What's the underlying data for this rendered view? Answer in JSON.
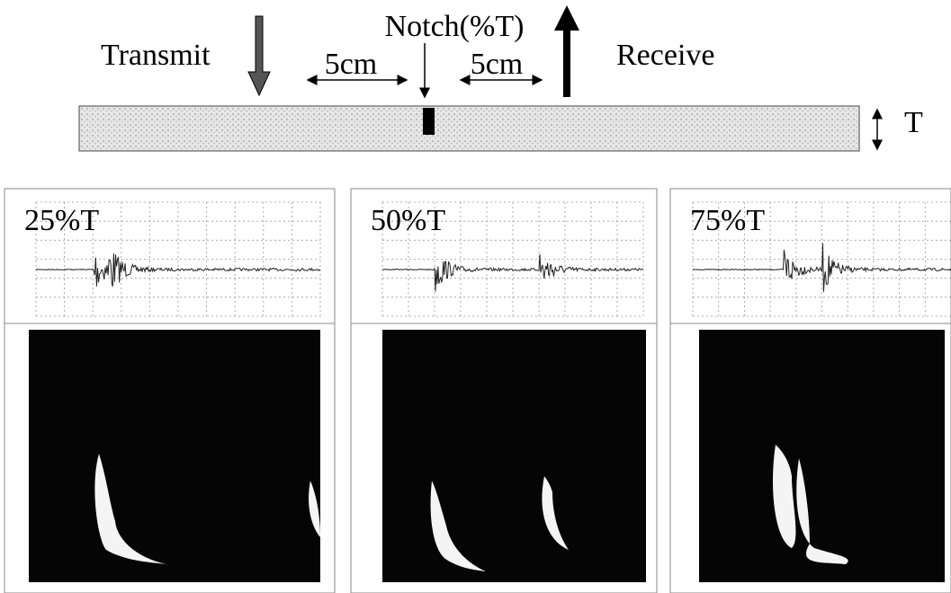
{
  "header": {
    "transmit": "Transmit",
    "notch": "Notch(%T)",
    "spacing_left": "5cm",
    "spacing_right": "5cm",
    "receive": "Receive",
    "thickness": "T"
  },
  "panels": [
    {
      "label": "25%T"
    },
    {
      "label": "50%T"
    },
    {
      "label": "75%T"
    }
  ]
}
